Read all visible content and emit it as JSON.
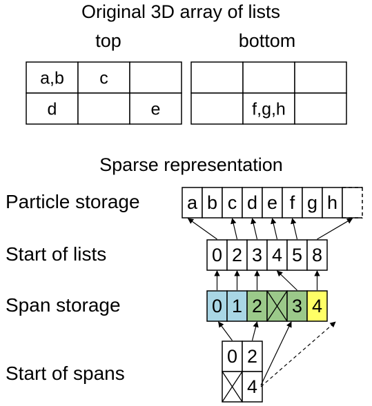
{
  "title": "Original 3D array of lists",
  "top_label": "top",
  "bottom_label": "bottom",
  "top_grid": [
    [
      "a,b",
      "c",
      ""
    ],
    [
      "d",
      "",
      "e"
    ]
  ],
  "bottom_grid": [
    [
      "",
      "",
      ""
    ],
    [
      "",
      "f,g,h",
      ""
    ]
  ],
  "sparse_title": "Sparse representation",
  "row_labels": {
    "particle": "Particle storage",
    "starts": "Start of lists",
    "spans": "Span storage",
    "span_starts": "Start of spans"
  },
  "particles": [
    "a",
    "b",
    "c",
    "d",
    "e",
    "f",
    "g",
    "h",
    ""
  ],
  "list_starts": [
    "0",
    "2",
    "3",
    "4",
    "5",
    "8"
  ],
  "span_storage": [
    {
      "value": "0",
      "color": "#a9d6e5"
    },
    {
      "value": "1",
      "color": "#a9d6e5"
    },
    {
      "value": "2",
      "color": "#9bc98a"
    },
    {
      "value": "",
      "color": "#9bc98a",
      "crossed": true
    },
    {
      "value": "3",
      "color": "#9bc98a"
    },
    {
      "value": "4",
      "color": "#ffff66"
    }
  ],
  "span_starts": [
    [
      "0",
      "2"
    ],
    [
      "",
      "4"
    ]
  ]
}
